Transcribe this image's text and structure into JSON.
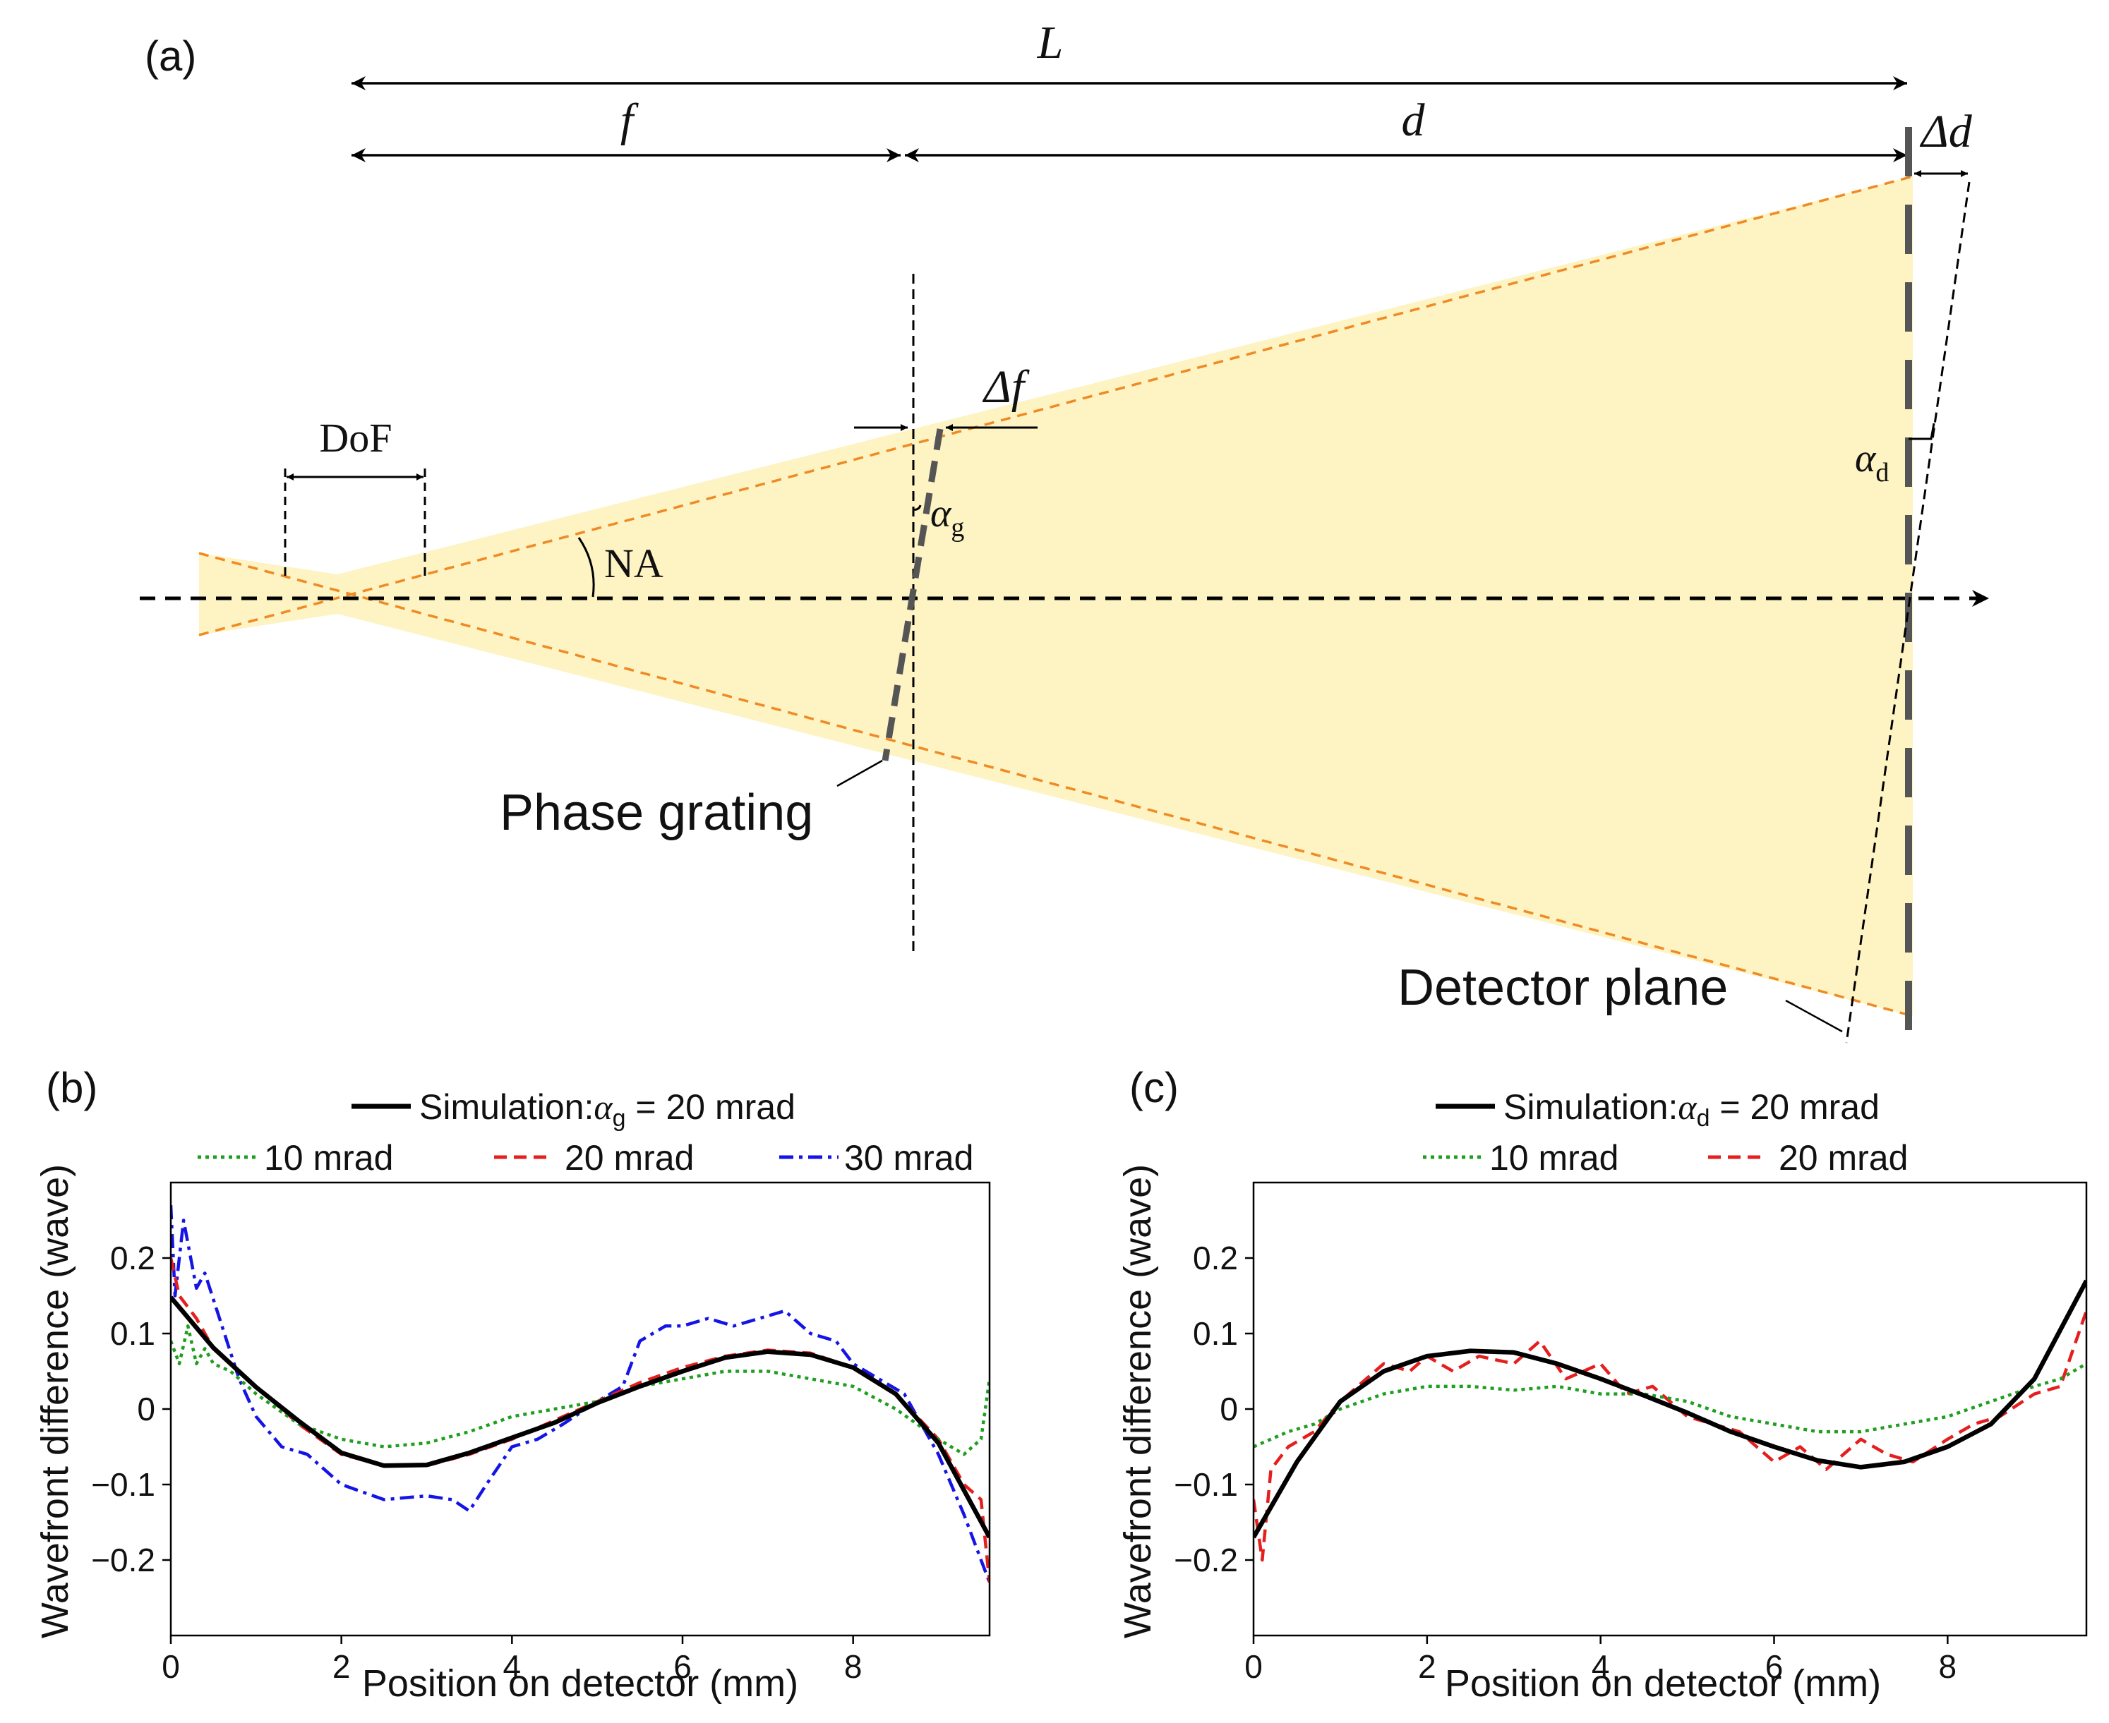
{
  "colors": {
    "beam_fill": "#fdf3c3",
    "beam_edge": "#f08a24",
    "element": "#555555",
    "black": "#000000",
    "green": "#1f9e1f",
    "red": "#e51e1e",
    "blue": "#1414e6"
  },
  "diagram": {
    "panel_label": "(a)",
    "L_label": "L",
    "f_label": "f",
    "d_label": "d",
    "delta_d_label": "Δd",
    "delta_f_label": "Δf",
    "dof_label": "DoF",
    "na_label": "NA",
    "alpha_g_base": "α",
    "alpha_g_sub": "g",
    "alpha_d_base": "α",
    "alpha_d_sub": "d",
    "grating_label": "Phase grating",
    "detector_label": "Detector plane"
  },
  "chart_data": [
    {
      "panel_label": "(b)",
      "type": "line",
      "xlabel": "Position on detector (mm)",
      "ylabel": "Wavefront difference (wave)",
      "xlim": [
        0,
        9.6
      ],
      "ylim": [
        -0.3,
        0.3
      ],
      "x_ticks": [
        "0",
        "2",
        "4",
        "6",
        "8"
      ],
      "y_ticks": [
        "−0.2",
        "−0.1",
        "0",
        "0.1",
        "0.2"
      ],
      "legend": {
        "sim_text_pre": "Simulation:",
        "sim_symbol": "α",
        "sim_sub": "g",
        "sim_text_post": " = 20 mrad",
        "entries": [
          "10 mrad",
          "20 mrad",
          "30 mrad"
        ]
      },
      "series": [
        {
          "name": "Simulation",
          "style": "solid",
          "color": "#000000",
          "x": [
            0,
            0.5,
            1,
            1.5,
            2,
            2.5,
            3,
            3.5,
            4,
            4.5,
            5,
            5.5,
            6,
            6.5,
            7,
            7.5,
            8,
            8.5,
            9,
            9.6
          ],
          "values": [
            0.148,
            0.081,
            0.029,
            -0.016,
            -0.058,
            -0.075,
            -0.074,
            -0.058,
            -0.038,
            -0.018,
            0.008,
            0.03,
            0.05,
            0.068,
            0.076,
            0.072,
            0.055,
            0.02,
            -0.045,
            -0.17
          ]
        },
        {
          "name": "10 mrad",
          "style": "dotted",
          "color": "#1f9e1f",
          "x": [
            0,
            0.1,
            0.2,
            0.3,
            0.4,
            0.5,
            0.7,
            1,
            1.5,
            2,
            2.5,
            3,
            3.5,
            4,
            4.5,
            5,
            5.5,
            6,
            6.5,
            7,
            7.5,
            8,
            8.5,
            9,
            9.3,
            9.5,
            9.6
          ],
          "values": [
            0.09,
            0.06,
            0.11,
            0.06,
            0.08,
            0.06,
            0.05,
            0.02,
            -0.02,
            -0.04,
            -0.05,
            -0.045,
            -0.03,
            -0.01,
            0.0,
            0.01,
            0.03,
            0.04,
            0.05,
            0.05,
            0.04,
            0.03,
            0.0,
            -0.04,
            -0.06,
            -0.04,
            0.04
          ]
        },
        {
          "name": "20 mrad",
          "style": "dashed",
          "color": "#e51e1e",
          "x": [
            0,
            0.1,
            0.3,
            0.5,
            1,
            1.5,
            2,
            2.5,
            3,
            3.5,
            4,
            4.5,
            5,
            5.5,
            6,
            6.5,
            7,
            7.5,
            8,
            8.5,
            9,
            9.3,
            9.5,
            9.6
          ],
          "values": [
            0.2,
            0.15,
            0.12,
            0.08,
            0.03,
            -0.02,
            -0.06,
            -0.075,
            -0.075,
            -0.06,
            -0.04,
            -0.015,
            0.01,
            0.035,
            0.055,
            0.07,
            0.078,
            0.074,
            0.055,
            0.02,
            -0.04,
            -0.1,
            -0.12,
            -0.23
          ]
        },
        {
          "name": "30 mrad",
          "style": "dashdot",
          "color": "#1414e6",
          "x": [
            0,
            0.05,
            0.15,
            0.3,
            0.4,
            0.6,
            0.8,
            1,
            1.3,
            1.6,
            2,
            2.5,
            3,
            3.3,
            3.5,
            3.7,
            4,
            4.3,
            4.6,
            5,
            5.3,
            5.5,
            5.8,
            6,
            6.3,
            6.6,
            6.9,
            7.2,
            7.5,
            7.8,
            8,
            8.3,
            8.6,
            9,
            9.3,
            9.6
          ],
          "values": [
            0.27,
            0.15,
            0.25,
            0.16,
            0.18,
            0.11,
            0.04,
            -0.01,
            -0.05,
            -0.06,
            -0.1,
            -0.12,
            -0.115,
            -0.12,
            -0.135,
            -0.1,
            -0.05,
            -0.04,
            -0.02,
            0.01,
            0.03,
            0.09,
            0.11,
            0.11,
            0.12,
            0.11,
            0.12,
            0.13,
            0.1,
            0.09,
            0.06,
            0.04,
            0.02,
            -0.06,
            -0.14,
            -0.23
          ]
        }
      ]
    },
    {
      "panel_label": "(c)",
      "type": "line",
      "xlabel": "Position on detector (mm)",
      "ylabel": "Wavefront difference (wave)",
      "xlim": [
        0,
        9.6
      ],
      "ylim": [
        -0.3,
        0.3
      ],
      "x_ticks": [
        "0",
        "2",
        "4",
        "6",
        "8"
      ],
      "y_ticks": [
        "−0.2",
        "−0.1",
        "0",
        "0.1",
        "0.2"
      ],
      "legend": {
        "sim_text_pre": "Simulation:",
        "sim_symbol": "α",
        "sim_sub": "d",
        "sim_text_post": " = 20 mrad",
        "entries": [
          "10 mrad",
          "20 mrad"
        ]
      },
      "series": [
        {
          "name": "Simulation",
          "style": "solid",
          "color": "#000000",
          "x": [
            0,
            0.5,
            1,
            1.5,
            2,
            2.5,
            3,
            3.5,
            4,
            4.5,
            5,
            5.5,
            6,
            6.5,
            7,
            7.5,
            8,
            8.5,
            9,
            9.6
          ],
          "values": [
            -0.17,
            -0.07,
            0.01,
            0.05,
            0.07,
            0.077,
            0.075,
            0.06,
            0.04,
            0.018,
            -0.005,
            -0.03,
            -0.05,
            -0.068,
            -0.077,
            -0.07,
            -0.05,
            -0.02,
            0.04,
            0.17
          ]
        },
        {
          "name": "10 mrad",
          "style": "dotted",
          "color": "#1f9e1f",
          "x": [
            0,
            0.2,
            0.4,
            0.7,
            1,
            1.5,
            2,
            2.5,
            3,
            3.5,
            4,
            4.5,
            5,
            5.5,
            6,
            6.5,
            7,
            7.5,
            8,
            8.5,
            9,
            9.3,
            9.6
          ],
          "values": [
            -0.05,
            -0.04,
            -0.03,
            -0.02,
            0.0,
            0.02,
            0.03,
            0.03,
            0.025,
            0.03,
            0.02,
            0.02,
            0.01,
            -0.01,
            -0.02,
            -0.03,
            -0.03,
            -0.02,
            -0.01,
            0.01,
            0.03,
            0.04,
            0.06
          ]
        },
        {
          "name": "20 mrad",
          "style": "dashed",
          "color": "#e51e1e",
          "x": [
            0,
            0.1,
            0.2,
            0.4,
            0.7,
            1,
            1.3,
            1.5,
            1.8,
            2,
            2.3,
            2.6,
            3,
            3.3,
            3.6,
            4,
            4.3,
            4.6,
            5,
            5.3,
            5.6,
            6,
            6.3,
            6.6,
            7,
            7.3,
            7.6,
            8,
            8.3,
            8.6,
            9,
            9.3,
            9.6
          ],
          "values": [
            -0.12,
            -0.2,
            -0.08,
            -0.05,
            -0.03,
            0.01,
            0.04,
            0.06,
            0.05,
            0.07,
            0.05,
            0.07,
            0.06,
            0.09,
            0.04,
            0.06,
            0.02,
            0.03,
            -0.01,
            -0.02,
            -0.03,
            -0.07,
            -0.05,
            -0.08,
            -0.04,
            -0.06,
            -0.07,
            -0.04,
            -0.02,
            -0.01,
            0.02,
            0.03,
            0.13
          ]
        }
      ]
    }
  ]
}
